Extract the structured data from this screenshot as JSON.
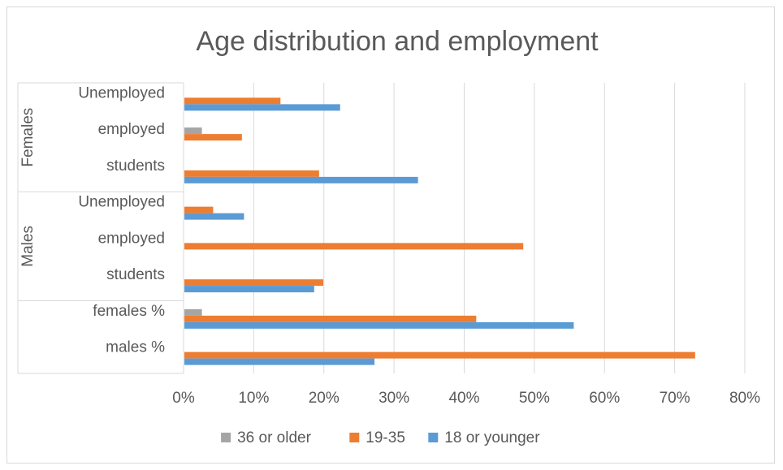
{
  "chart_data": {
    "type": "bar",
    "orientation": "horizontal",
    "title": "Age distribution and employment",
    "xlim": [
      0,
      80
    ],
    "x_ticks": [
      "0%",
      "10%",
      "20%",
      "30%",
      "40%",
      "50%",
      "60%",
      "70%",
      "80%"
    ],
    "grid": true,
    "legend_position": "bottom",
    "groups": [
      {
        "label": "Females",
        "categories": [
          "Unemployed",
          "employed",
          "students"
        ]
      },
      {
        "label": "Males",
        "categories": [
          "Unemployed",
          "employed",
          "students"
        ]
      },
      {
        "label": "",
        "categories": [
          "females %",
          "males %"
        ]
      }
    ],
    "categories": [
      "Females Unemployed",
      "Females employed",
      "Females students",
      "Males Unemployed",
      "Males employed",
      "Males students",
      "females %",
      "males %"
    ],
    "series": [
      {
        "name": "36 or older",
        "color": "#a5a5a5",
        "values": [
          0,
          2.5,
          0,
          0,
          0,
          0,
          2.5,
          0
        ]
      },
      {
        "name": "19-35",
        "color": "#ed7d31",
        "values": [
          13.7,
          8.2,
          19.2,
          4.1,
          48.3,
          19.8,
          41.6,
          72.8
        ]
      },
      {
        "name": "18 or younger",
        "color": "#5b9bd5",
        "values": [
          22.2,
          0,
          33.3,
          8.5,
          0,
          18.5,
          55.5,
          27.1
        ]
      }
    ]
  }
}
